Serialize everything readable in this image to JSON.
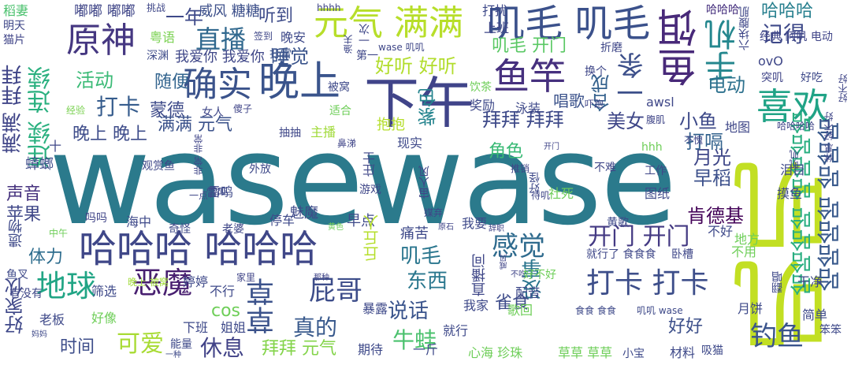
{
  "words": [
    {
      "text": "wasewase",
      "color": "#2b7a8c"
    },
    {
      "text": "叽叽",
      "color": "#c2df23"
    },
    {
      "text": "下午",
      "color": "#404489"
    },
    {
      "text": "晚上",
      "color": "#3a548c"
    },
    {
      "text": "确实",
      "color": "#3b538b"
    },
    {
      "text": "原神",
      "color": "#453781"
    },
    {
      "text": "直播",
      "color": "#30688e"
    },
    {
      "text": "元气 满满",
      "color": "#b7de2a"
    },
    {
      "text": "叽毛 叽毛",
      "color": "#3b518b"
    },
    {
      "text": "鱼饵",
      "color": "#482979"
    },
    {
      "text": "手机",
      "color": "#24878e"
    },
    {
      "text": "哈哈哈",
      "color": "#277f8e"
    },
    {
      "text": "记得",
      "color": "#3e4989"
    },
    {
      "text": "喜欢",
      "color": "#20a386"
    },
    {
      "text": "鱼竿",
      "color": "#46307e"
    },
    {
      "text": "一条",
      "color": "#3c4f8a"
    },
    {
      "text": "哈哈哈 哈哈哈",
      "color": "#3f4788"
    },
    {
      "text": "感觉",
      "color": "#2f6b8e"
    },
    {
      "text": "哈哈哈哈 哈哈哈",
      "color": "#38598c"
    },
    {
      "text": "哈哈哈哈 哈哈哈哈",
      "color": "#28ae80"
    },
    {
      "text": "开门 开门",
      "color": "#443a83"
    },
    {
      "text": "打卡 打卡",
      "color": "#3d4e8a"
    },
    {
      "text": "恶魔",
      "color": "#481f70"
    },
    {
      "text": "地球",
      "color": "#21a585"
    },
    {
      "text": "草草",
      "color": "#3b528b"
    },
    {
      "text": "屁哥",
      "color": "#3d4d8a"
    },
    {
      "text": "钓鱼",
      "color": "#3a548c"
    },
    {
      "text": "连续 连续",
      "color": "#2ab07f"
    },
    {
      "text": "满满 拜拜",
      "color": "#404588"
    },
    {
      "text": "好家伙",
      "color": "#3f4889"
    },
    {
      "text": "声音",
      "color": "#46327e"
    },
    {
      "text": "苹果",
      "color": "#3f4788"
    },
    {
      "text": "体力",
      "color": "#2e6d8e"
    },
    {
      "text": "叽毛",
      "color": "#2a768e"
    },
    {
      "text": "东西",
      "color": "#2a778e"
    },
    {
      "text": "说话",
      "color": "#3a548c"
    },
    {
      "text": "雀食",
      "color": "#3e4c8a"
    },
    {
      "text": "没事",
      "color": "#2b758e"
    },
    {
      "text": "真的",
      "color": "#38598c"
    },
    {
      "text": "牛蛙",
      "color": "#4ac16d"
    },
    {
      "text": "休息",
      "color": "#414287"
    },
    {
      "text": "可爱",
      "color": "#a8db34"
    },
    {
      "text": "时间",
      "color": "#3d4d8a"
    },
    {
      "text": "拜拜 元气",
      "color": "#84d44b"
    },
    {
      "text": "好好",
      "color": "#3c4f8a"
    },
    {
      "text": "月光",
      "color": "#3f4788"
    },
    {
      "text": "打嗝",
      "color": "#33628d"
    },
    {
      "text": "早稻",
      "color": "#3c508b"
    },
    {
      "text": "肯德基",
      "color": "#450559"
    },
    {
      "text": "小鱼",
      "color": "#3e4a89"
    },
    {
      "text": "拜拜 拜拜",
      "color": "#3e4a89"
    },
    {
      "text": "美女",
      "color": "#3f4788"
    },
    {
      "text": "角色",
      "color": "#3aba76"
    },
    {
      "text": "紫色",
      "color": "#25848e"
    },
    {
      "text": "打卡",
      "color": "#365c8d"
    },
    {
      "text": "蒙德",
      "color": "#3e4a89"
    },
    {
      "text": "满满 元气",
      "color": "#3b528b"
    },
    {
      "text": "晚上 晚上",
      "color": "#3e4c8a"
    },
    {
      "text": "活动",
      "color": "#3aba76"
    },
    {
      "text": "随便",
      "color": "#32648e"
    },
    {
      "text": "好听 好听",
      "color": "#b2dd2d"
    },
    {
      "text": "叽毛 开门",
      "color": "#5ac864"
    },
    {
      "text": "睡觉",
      "color": "#3a548c"
    },
    {
      "text": "电动",
      "color": "#2d718e"
    },
    {
      "text": "一年",
      "color": "#3e4989"
    },
    {
      "text": "听到",
      "color": "#3e4c8a"
    },
    {
      "text": "合成",
      "color": "#34618d"
    },
    {
      "text": "唱歌",
      "color": "#3b528b"
    },
    {
      "text": "嘟嘟 嘟嘟",
      "color": "#404688"
    },
    {
      "text": "威风 糖糖",
      "color": "#3c4f8a"
    },
    {
      "text": "打扰",
      "color": "#3e4989"
    },
    {
      "text": "上班",
      "color": "#3f4788"
    },
    {
      "text": "哈哈哈",
      "color": "#46307e"
    },
    {
      "text": "六块腹肌",
      "color": "#3f4788"
    },
    {
      "text": "经典 阿叽 电动",
      "color": "#404588"
    },
    {
      "text": "我爱你 我爱你",
      "color": "#3f4788"
    },
    {
      "text": "粤语",
      "color": "#7ad151"
    },
    {
      "text": "晚安",
      "color": "#3e4989"
    },
    {
      "text": "打雷",
      "color": "#3b528b"
    },
    {
      "text": "深渊",
      "color": "#3e4c8a"
    },
    {
      "text": "签到",
      "color": "#3f4788"
    },
    {
      "text": "hhhh",
      "color": "#404688"
    },
    {
      "text": "挑战",
      "color": "#3f4788"
    },
    {
      "text": "稻妻",
      "color": "#4ac16d"
    },
    {
      "text": "明天",
      "color": "#3f4788"
    },
    {
      "text": "猫片",
      "color": "#404588"
    },
    {
      "text": "一次",
      "color": "#3f4788"
    },
    {
      "text": "渔夫",
      "color": "#3f4788"
    },
    {
      "text": "第一",
      "color": "#3f4788"
    },
    {
      "text": "wase 叽叽",
      "color": "#3f4788"
    },
    {
      "text": "被窝",
      "color": "#3e4989"
    },
    {
      "text": "饮茶",
      "color": "#6ece58"
    },
    {
      "text": "换个",
      "color": "#3f4788"
    },
    {
      "text": "折磨",
      "color": "#3f4788"
    },
    {
      "text": "ovO",
      "color": "#3f4788"
    },
    {
      "text": "突叽",
      "color": "#404588"
    },
    {
      "text": "好吃",
      "color": "#3e4989"
    },
    {
      "text": "好不好",
      "color": "#404688"
    },
    {
      "text": "awsl",
      "color": "#3f4788"
    },
    {
      "text": "奖励",
      "color": "#3e4989"
    },
    {
      "text": "泳装",
      "color": "#3e4989"
    },
    {
      "text": "吓跑",
      "color": "#404588"
    },
    {
      "text": "腹肌",
      "color": "#404688"
    },
    {
      "text": "地图",
      "color": "#3f4788"
    },
    {
      "text": "哈哈哈哈",
      "color": "#404588"
    },
    {
      "text": "休息 好不好",
      "color": "#404688"
    },
    {
      "text": "经验",
      "color": "#7ad151"
    },
    {
      "text": "傻子",
      "color": "#404588"
    },
    {
      "text": "女人",
      "color": "#3f4788"
    },
    {
      "text": "适合",
      "color": "#6ece58"
    },
    {
      "text": "主播",
      "color": "#a0da39"
    },
    {
      "text": "抽抽",
      "color": "#3f4788"
    },
    {
      "text": "抱抱",
      "color": "#b5de2b"
    },
    {
      "text": "鼻涕",
      "color": "#404588"
    },
    {
      "text": "现实",
      "color": "#3e4989"
    },
    {
      "text": "十",
      "color": "#3f4788"
    },
    {
      "text": "蟑螂",
      "color": "#3e4c8a"
    },
    {
      "text": "观赏鱼",
      "color": "#3f4788"
    },
    {
      "text": "非常 非常",
      "color": "#404588"
    },
    {
      "text": "外放",
      "color": "#3e4989"
    },
    {
      "text": "庄士",
      "color": "#3f4788"
    },
    {
      "text": "雷鸣",
      "color": "#3e4989"
    },
    {
      "text": "游戏",
      "color": "#3f4788"
    },
    {
      "text": "宙人风",
      "color": "#404588"
    },
    {
      "text": "hhh",
      "color": "#6ece58"
    },
    {
      "text": "开门",
      "color": "#404588"
    },
    {
      "text": "不愧",
      "color": "#404688"
    },
    {
      "text": "叽叽",
      "color": "#404588"
    },
    {
      "text": "推销",
      "color": "#404588"
    },
    {
      "text": "好怪",
      "color": "#3e4989"
    },
    {
      "text": "不难",
      "color": "#3f4788"
    },
    {
      "text": "工作",
      "color": "#3f4788"
    },
    {
      "text": "图纸",
      "color": "#3e4989"
    },
    {
      "text": "待叽",
      "color": "#3f4788"
    },
    {
      "text": "社死",
      "color": "#6ece58"
    },
    {
      "text": "摸鱼",
      "color": "#3e4989"
    },
    {
      "text": "泪目",
      "color": "#3e4989"
    },
    {
      "text": "一点",
      "color": "#3f4788"
    },
    {
      "text": "雷鸣",
      "color": "#3e4989"
    },
    {
      "text": "魅魔",
      "color": "#3e4989"
    },
    {
      "text": "早点",
      "color": "#3e4989"
    },
    {
      "text": "海中",
      "color": "#3e4989"
    },
    {
      "text": "吗吗",
      "color": "#404588"
    },
    {
      "text": "奇怪",
      "color": "#3e4989"
    },
    {
      "text": "老婆",
      "color": "#3f4788"
    },
    {
      "text": "停车",
      "color": "#3e4989"
    },
    {
      "text": "媒弃",
      "color": "#404588"
    },
    {
      "text": "黄色",
      "color": "#6ece58"
    },
    {
      "text": "原石",
      "color": "#404588"
    },
    {
      "text": "我要",
      "color": "#3e4989"
    },
    {
      "text": "辞职",
      "color": "#404588"
    },
    {
      "text": "黄歌",
      "color": "#3e4989"
    },
    {
      "text": "不好",
      "color": "#3e4989"
    },
    {
      "text": "痛苦",
      "color": "#3e4989"
    },
    {
      "text": "遗物",
      "color": "#3e4989"
    },
    {
      "text": "中午",
      "color": "#6ece58"
    },
    {
      "text": "丘丘人",
      "color": "#b5de2b"
    },
    {
      "text": "直播间",
      "color": "#3f4788"
    },
    {
      "text": "不吃",
      "color": "#404588"
    },
    {
      "text": "那种",
      "color": "#404588"
    },
    {
      "text": "威风",
      "color": "#404588"
    },
    {
      "text": "好不好",
      "color": "#6ece58"
    },
    {
      "text": "就行了 食食食",
      "color": "#3f4788"
    },
    {
      "text": "卧槽",
      "color": "#3f4788"
    },
    {
      "text": "不用",
      "color": "#6ece58"
    },
    {
      "text": "地方",
      "color": "#6ece58"
    },
    {
      "text": "鱼叉",
      "color": "#3e4989"
    },
    {
      "text": "有没有",
      "color": "#3f4788"
    },
    {
      "text": "筛选",
      "color": "#3e4989"
    },
    {
      "text": "晚上 被窝",
      "color": "#a0da39"
    },
    {
      "text": "婷婷",
      "color": "#3e4989"
    },
    {
      "text": "家里",
      "color": "#404588"
    },
    {
      "text": "不行",
      "color": "#3e4989"
    },
    {
      "text": "cos",
      "color": "#6ece58"
    },
    {
      "text": "配音",
      "color": "#3e4989"
    },
    {
      "text": "歌回",
      "color": "#6ece58"
    },
    {
      "text": "干净",
      "color": "#3e4989"
    },
    {
      "text": "翻唱",
      "color": "#3e4989"
    },
    {
      "text": "月饼",
      "color": "#3e4989"
    },
    {
      "text": "老板",
      "color": "#3e4989"
    },
    {
      "text": "好像",
      "color": "#6ece58"
    },
    {
      "text": "我家",
      "color": "#3e4989"
    },
    {
      "text": "暴露",
      "color": "#3e4989"
    },
    {
      "text": "食食 食食",
      "color": "#3e4989"
    },
    {
      "text": "叽叽 wase",
      "color": "#3e4989"
    },
    {
      "text": "下班",
      "color": "#3e4989"
    },
    {
      "text": "姐姐",
      "color": "#3e4989"
    },
    {
      "text": "就行",
      "color": "#3e4989"
    },
    {
      "text": "简单",
      "color": "#3e4989"
    },
    {
      "text": "期待",
      "color": "#3e4989"
    },
    {
      "text": "一斤",
      "color": "#3e4989"
    },
    {
      "text": "心海 珍珠",
      "color": "#6ece58"
    },
    {
      "text": "草草 草草",
      "color": "#6ece58"
    },
    {
      "text": "小宝",
      "color": "#3e4989"
    },
    {
      "text": "材料",
      "color": "#3e4989"
    },
    {
      "text": "吸猫",
      "color": "#3e4989"
    },
    {
      "text": "笨笨",
      "color": "#3e4989"
    },
    {
      "text": "能量",
      "color": "#3e4989"
    },
    {
      "text": "一种",
      "color": "#3e4989"
    },
    {
      "text": "妈妈",
      "color": "#3e4989"
    }
  ]
}
